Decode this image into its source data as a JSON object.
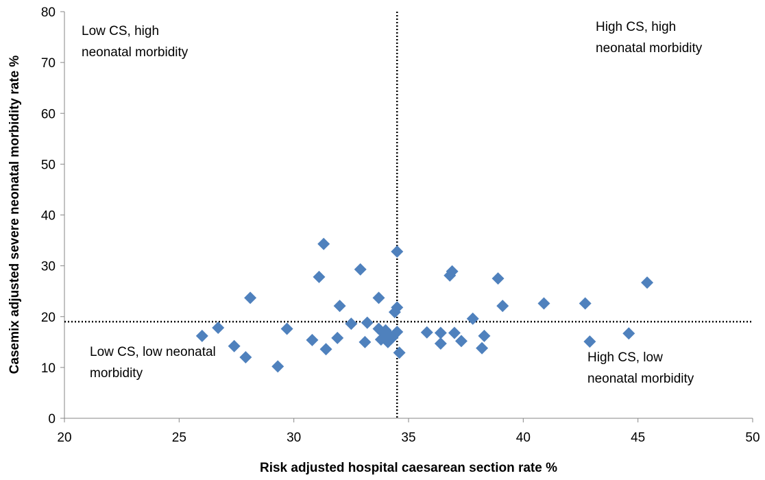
{
  "chart_data": {
    "type": "scatter",
    "title": "",
    "xlabel": "Risk adjusted hospital caesarean section rate %",
    "ylabel": "Casemix adjusted severe neonatal morbidity rate %",
    "xlim": [
      20,
      50
    ],
    "ylim": [
      0,
      80
    ],
    "xticks": [
      20,
      25,
      30,
      35,
      40,
      45,
      50
    ],
    "yticks": [
      0,
      10,
      20,
      30,
      40,
      50,
      60,
      70,
      80
    ],
    "grid": false,
    "legend": "none",
    "marker": "diamond",
    "marker_color": "#4f81bd",
    "reference_lines": {
      "x": 34.5,
      "y": 19,
      "style": "dotted"
    },
    "quadrant_labels": {
      "top_left": [
        "Low CS, high",
        "neonatal  morbidity"
      ],
      "top_right": [
        "High CS, high",
        "neonatal  morbidity"
      ],
      "bottom_left": [
        "Low CS, low neonatal",
        "morbidity"
      ],
      "bottom_right": [
        "High CS, low",
        "neonatal  morbidity"
      ]
    },
    "points": [
      [
        26.0,
        16.2
      ],
      [
        26.7,
        17.8
      ],
      [
        27.4,
        14.2
      ],
      [
        27.9,
        12.0
      ],
      [
        28.1,
        23.7
      ],
      [
        29.3,
        10.2
      ],
      [
        29.7,
        17.6
      ],
      [
        30.8,
        15.4
      ],
      [
        31.1,
        27.8
      ],
      [
        31.3,
        34.3
      ],
      [
        31.4,
        13.6
      ],
      [
        31.9,
        15.8
      ],
      [
        32.0,
        22.1
      ],
      [
        32.5,
        18.6
      ],
      [
        32.9,
        29.3
      ],
      [
        33.1,
        15.0
      ],
      [
        33.2,
        18.8
      ],
      [
        33.7,
        17.6
      ],
      [
        33.7,
        23.7
      ],
      [
        33.8,
        15.5
      ],
      [
        33.9,
        16.8
      ],
      [
        34.0,
        17.3
      ],
      [
        34.0,
        15.8
      ],
      [
        34.1,
        15.0
      ],
      [
        34.2,
        16.2
      ],
      [
        34.3,
        15.9
      ],
      [
        34.4,
        20.9
      ],
      [
        34.5,
        32.8
      ],
      [
        34.5,
        17.0
      ],
      [
        34.5,
        21.8
      ],
      [
        34.6,
        12.9
      ],
      [
        35.8,
        16.9
      ],
      [
        36.4,
        16.8
      ],
      [
        36.4,
        14.7
      ],
      [
        36.8,
        28.1
      ],
      [
        36.9,
        28.9
      ],
      [
        37.0,
        16.8
      ],
      [
        37.3,
        15.2
      ],
      [
        37.8,
        19.6
      ],
      [
        38.2,
        13.8
      ],
      [
        38.3,
        16.2
      ],
      [
        38.9,
        27.5
      ],
      [
        39.1,
        22.1
      ],
      [
        40.9,
        22.6
      ],
      [
        42.7,
        22.6
      ],
      [
        42.9,
        15.1
      ],
      [
        44.6,
        16.7
      ],
      [
        45.4,
        26.7
      ]
    ]
  }
}
